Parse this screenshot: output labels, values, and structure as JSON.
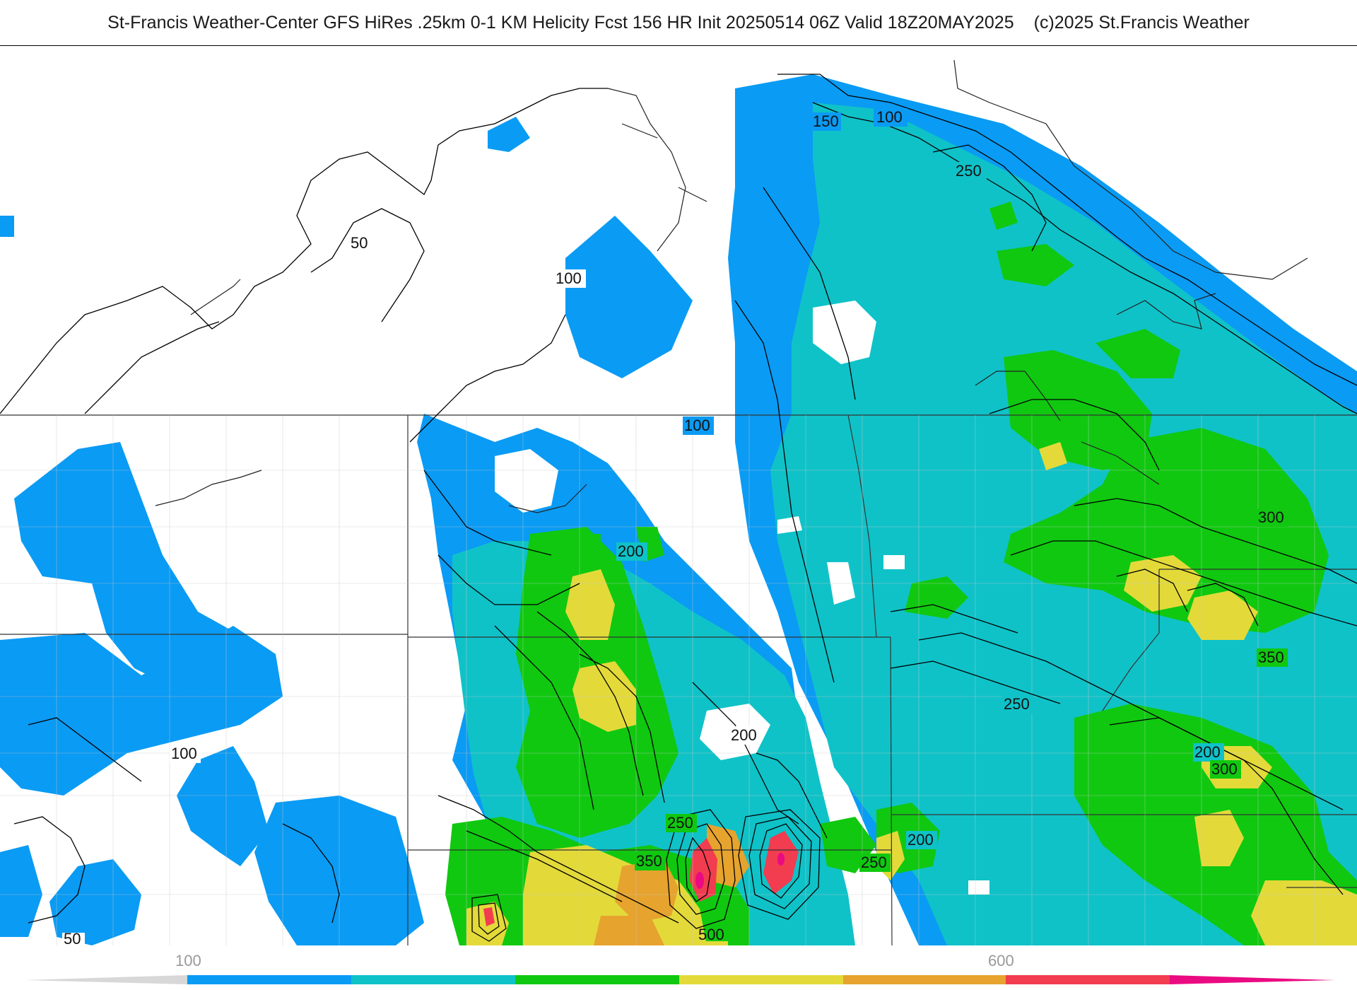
{
  "title": {
    "main": "St-Francis Weather-Center GFS HiRes .25km 0-1 KM Helicity Fcst 156 HR Init 20250514 06Z  Valid 18Z20MAY2025",
    "copyright": "(c)2025 St.Francis Weather"
  },
  "map": {
    "contour_labels": [
      {
        "id": "lbl-150",
        "text": "150"
      },
      {
        "id": "lbl-100-a",
        "text": "100"
      },
      {
        "id": "lbl-250-a",
        "text": "250"
      },
      {
        "id": "lbl-50-a",
        "text": "50"
      },
      {
        "id": "lbl-100-b",
        "text": "100"
      },
      {
        "id": "lbl-100-c",
        "text": "100"
      },
      {
        "id": "lbl-200-a",
        "text": "200"
      },
      {
        "id": "lbl-300-a",
        "text": "300"
      },
      {
        "id": "lbl-350-a",
        "text": "350"
      },
      {
        "id": "lbl-250-b",
        "text": "250"
      },
      {
        "id": "lbl-200-b",
        "text": "200"
      },
      {
        "id": "lbl-200-c",
        "text": "200"
      },
      {
        "id": "lbl-300-b",
        "text": "300"
      },
      {
        "id": "lbl-100-d",
        "text": "100"
      },
      {
        "id": "lbl-250-c",
        "text": "250"
      },
      {
        "id": "lbl-350-b",
        "text": "350"
      },
      {
        "id": "lbl-500",
        "text": "500"
      },
      {
        "id": "lbl-200-d",
        "text": "200"
      },
      {
        "id": "lbl-250-d",
        "text": "250"
      },
      {
        "id": "lbl-50-b",
        "text": "50"
      }
    ]
  },
  "legend": {
    "tick_100": "100",
    "tick_600": "600",
    "colors": [
      "#d8d8d8",
      "#0a9bf4",
      "#0fc2c8",
      "#10c810",
      "#e3da3a",
      "#e6a32e",
      "#f23c50",
      "#ea0a82"
    ]
  }
}
